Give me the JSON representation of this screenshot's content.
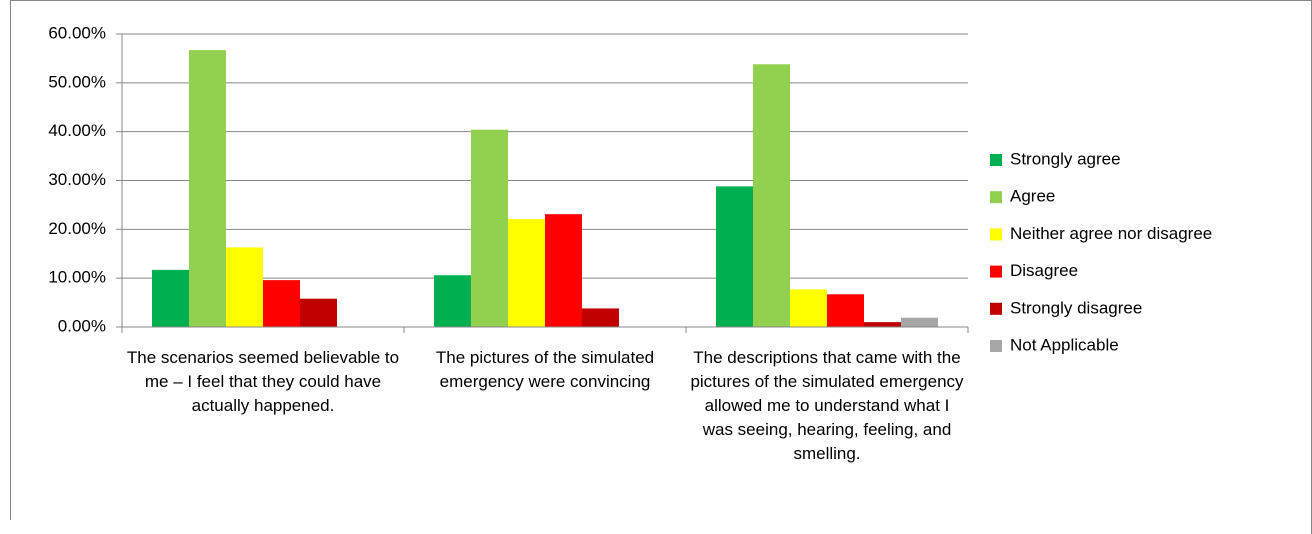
{
  "chart_data": {
    "type": "bar",
    "categories": [
      "The scenarios seemed believable to me – I feel that they could have actually happened.",
      "The pictures of the simulated emergency were convincing",
      "The descriptions that came with the pictures of the simulated emergency allowed me to understand what I was seeing, hearing, feeling, and smelling."
    ],
    "series": [
      {
        "name": "Strongly agree",
        "color": "#00b050",
        "values": [
          11.7,
          10.6,
          28.8
        ]
      },
      {
        "name": "Agree",
        "color": "#92d050",
        "values": [
          56.7,
          40.4,
          53.8
        ]
      },
      {
        "name": "Neither agree nor disagree",
        "color": "#ffff00",
        "values": [
          16.3,
          22.1,
          7.7
        ]
      },
      {
        "name": "Disagree",
        "color": "#ff0000",
        "values": [
          9.6,
          23.1,
          6.7
        ]
      },
      {
        "name": "Strongly disagree",
        "color": "#c00000",
        "values": [
          5.8,
          3.8,
          1.0
        ]
      },
      {
        "name": "Not Applicable",
        "color": "#a6a6a6",
        "values": [
          0,
          0,
          1.9
        ]
      }
    ],
    "ylim": [
      0,
      60
    ],
    "yticks": [
      {
        "value": 0,
        "label": "0.00%"
      },
      {
        "value": 10,
        "label": "10.00%"
      },
      {
        "value": 20,
        "label": "20.00%"
      },
      {
        "value": 30,
        "label": "30.00%"
      },
      {
        "value": 40,
        "label": "40.00%"
      },
      {
        "value": 50,
        "label": "50.00%"
      },
      {
        "value": 60,
        "label": "60.00%"
      }
    ],
    "grid": true,
    "legend": "right"
  }
}
